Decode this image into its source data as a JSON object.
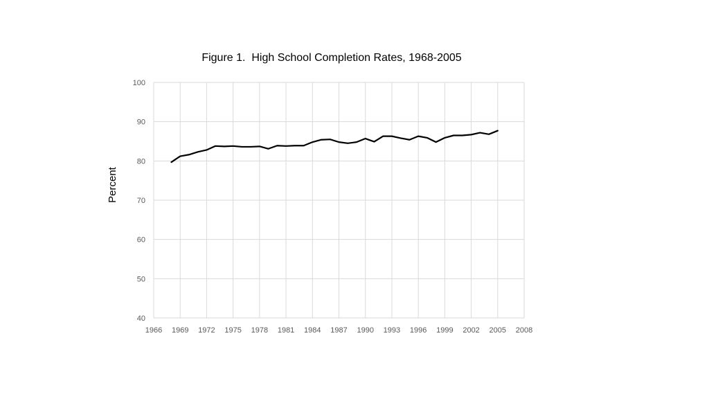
{
  "chart_data": {
    "type": "line",
    "title": "Figure 1.  High School Completion Rates, 1968-2005",
    "xlabel": "",
    "ylabel": "Percent",
    "xlim": [
      1966,
      2008
    ],
    "ylim": [
      40,
      100
    ],
    "x_ticks": [
      1966,
      1969,
      1972,
      1975,
      1978,
      1981,
      1984,
      1987,
      1990,
      1993,
      1996,
      1999,
      2002,
      2005,
      2008
    ],
    "y_ticks": [
      40,
      50,
      60,
      70,
      80,
      90,
      100
    ],
    "grid": true,
    "legend": "none",
    "line_color": "#000000",
    "grid_color": "#d9d9d9",
    "series": [
      {
        "x": [
          1968,
          1969,
          1970,
          1971,
          1972,
          1973,
          1974,
          1975,
          1976,
          1977,
          1978,
          1979,
          1980,
          1981,
          1982,
          1983,
          1984,
          1985,
          1986,
          1987,
          1988,
          1989,
          1990,
          1991,
          1992,
          1993,
          1994,
          1995,
          1996,
          1997,
          1998,
          1999,
          2000,
          2001,
          2002,
          2003,
          2004,
          2005
        ],
        "values": [
          79.7,
          81.2,
          81.6,
          82.3,
          82.8,
          83.8,
          83.7,
          83.8,
          83.6,
          83.6,
          83.7,
          83.1,
          83.9,
          83.8,
          83.9,
          83.9,
          84.8,
          85.4,
          85.5,
          84.8,
          84.5,
          84.8,
          85.7,
          84.9,
          86.3,
          86.3,
          85.8,
          85.4,
          86.3,
          85.9,
          84.8,
          85.9,
          86.5,
          86.5,
          86.7,
          87.2,
          86.8,
          87.7
        ]
      }
    ]
  }
}
